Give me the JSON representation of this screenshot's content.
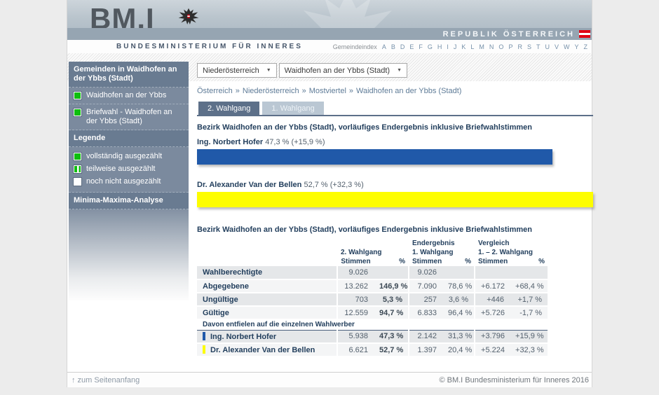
{
  "header": {
    "logo": "BM.I",
    "subtitle": "BUNDESMINISTERIUM FÜR INNERES",
    "republik": "REPUBLIK ÖSTERREICH",
    "gemeindeindex_label": "Gemeindeindex",
    "index_letters": [
      "A",
      "B",
      "D",
      "E",
      "F",
      "G",
      "H",
      "I",
      "J",
      "K",
      "L",
      "M",
      "N",
      "O",
      "P",
      "R",
      "S",
      "T",
      "U",
      "V",
      "W",
      "Y",
      "Z"
    ]
  },
  "sidebar": {
    "title": "Gemeinden in Waidhofen an der Ybbs (Stadt)",
    "items": [
      {
        "label": "Waidhofen an der Ybbs",
        "status": "vollständig ausgezählt"
      },
      {
        "label": "Briefwahl - Waidhofen an der Ybbs (Stadt)",
        "status": "vollständig ausgezählt"
      }
    ],
    "legend_title": "Legende",
    "legend": [
      {
        "label": "vollständig ausgezählt",
        "type": "full",
        "color": "#0ebe0e"
      },
      {
        "label": "teilweise ausgezählt",
        "type": "partial",
        "color": "#0ebe0e"
      },
      {
        "label": "noch nicht ausgezählt",
        "type": "none",
        "color": "#ffffff"
      }
    ],
    "analysis_link": "Minima-Maxima-Analyse"
  },
  "filters": {
    "state": "Niederösterreich",
    "municipality": "Waidhofen an der Ybbs (Stadt)"
  },
  "breadcrumb": {
    "separator": "»",
    "items": [
      "Österreich",
      "Niederösterreich",
      "Mostviertel",
      "Waidhofen an der Ybbs (Stadt)"
    ]
  },
  "tabs": [
    {
      "label": "2. Wahlgang",
      "active": true
    },
    {
      "label": "1. Wahlgang",
      "active": false
    }
  ],
  "section_title": "Bezirk Waidhofen an der Ybbs (Stadt), vorläufiges Endergebnis inklusive Briefwahlstimmen",
  "chart_data": {
    "type": "bar",
    "orientation": "horizontal",
    "title": "Bezirk Waidhofen an der Ybbs (Stadt), vorläufiges Endergebnis inklusive Briefwahlstimmen",
    "series": [
      {
        "name": "Ing. Norbert Hofer",
        "value_pct": 47.3,
        "delta_pct": 15.9,
        "value_label": "47,3 % (+15,9 %)",
        "color": "#2059a9",
        "width_pct": 89.7
      },
      {
        "name": "Dr. Alexander Van der Bellen",
        "value_pct": 52.7,
        "delta_pct": 32.3,
        "value_label": "52,7 % (+32,3 %)",
        "color": "#fdfd00",
        "width_pct": 100
      }
    ],
    "scale_note": "bars scaled so the largest value fills the content width"
  },
  "table": {
    "title": "Bezirk Waidhofen an der Ybbs (Stadt), vorläufiges Endergebnis inklusive Briefwahlstimmen",
    "groups": [
      {
        "line1": "",
        "line2": "2. Wahlgang"
      },
      {
        "line1": "Endergebnis",
        "line2": "1. Wahlgang"
      },
      {
        "line1": "Vergleich",
        "line2": "1. – 2. Wahlgang"
      }
    ],
    "sub_headers": {
      "stimmen": "Stimmen",
      "pct": "%"
    },
    "rows": [
      {
        "label": "Wahlberechtigte",
        "cells": [
          "9.026",
          "",
          "9.026",
          "",
          "",
          ""
        ]
      },
      {
        "label": "Abgegebene",
        "cells": [
          "13.262",
          "146,9 %",
          "7.090",
          "78,6 %",
          "+6.172",
          "+68,4 %"
        ]
      },
      {
        "label": "Ungültige",
        "cells": [
          "703",
          "5,3 %",
          "257",
          "3,6 %",
          "+446",
          "+1,7 %"
        ]
      },
      {
        "label": "Gültige",
        "cells": [
          "12.559",
          "94,7 %",
          "6.833",
          "96,4 %",
          "+5.726",
          "-1,7 %"
        ]
      }
    ],
    "section_label": "Davon entfielen auf die einzelnen Wahlwerber",
    "candidate_rows": [
      {
        "label": "Ing. Norbert Hofer",
        "marker_color": "#2059a9",
        "cells": [
          "5.938",
          "47,3 %",
          "2.142",
          "31,3 %",
          "+3.796",
          "+15,9 %"
        ]
      },
      {
        "label": "Dr. Alexander Van der Bellen",
        "marker_color": "#fdfd00",
        "cells": [
          "6.621",
          "52,7 %",
          "1.397",
          "20,4 %",
          "+5.224",
          "+32,3 %"
        ]
      }
    ]
  },
  "footer": {
    "top_link": "↑ zum Seitenanfang",
    "copyright": "© BM.I Bundesministerium für Inneres 2016"
  }
}
